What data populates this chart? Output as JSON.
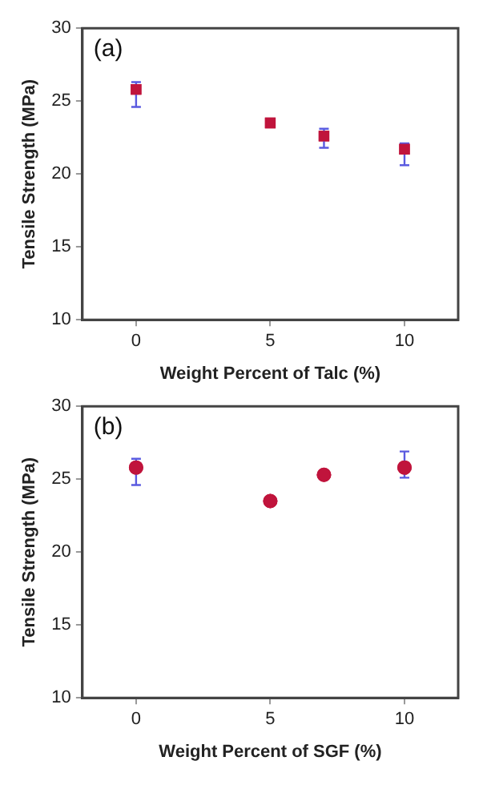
{
  "chart_data": [
    {
      "type": "scatter",
      "annotations": [
        "(a)"
      ],
      "xlabel": "Weight Percent of Talc (%)",
      "ylabel": "Tensile Strength (MPa)",
      "x": [
        0,
        5,
        7,
        10
      ],
      "series": [
        {
          "color": "#c0143c",
          "values": [
            25.8,
            23.5,
            22.6,
            21.7
          ],
          "errors": [
            [
              24.6,
              26.3
            ],
            null,
            [
              21.8,
              23.1
            ],
            [
              20.6,
              22.1
            ]
          ]
        }
      ],
      "xlim": [
        -2,
        12
      ],
      "xticks": [
        0,
        5,
        10
      ],
      "ylim": [
        10,
        30
      ],
      "yticks": [
        10,
        15,
        20,
        25,
        30
      ],
      "grid": false,
      "legend": false,
      "marker": "square"
    },
    {
      "type": "scatter",
      "annotations": [
        "(b)"
      ],
      "xlabel": "Weight Percent of SGF (%)",
      "ylabel": "Tensile Strength (MPa)",
      "x": [
        0,
        5,
        7,
        10
      ],
      "series": [
        {
          "color": "#c0143c",
          "values": [
            25.8,
            23.5,
            25.3,
            25.8
          ],
          "errors": [
            [
              24.6,
              26.4
            ],
            null,
            null,
            [
              25.1,
              26.9
            ]
          ]
        }
      ],
      "xlim": [
        -2,
        12
      ],
      "xticks": [
        0,
        5,
        10
      ],
      "ylim": [
        10,
        30
      ],
      "yticks": [
        10,
        15,
        20,
        25,
        30
      ],
      "grid": false,
      "legend": false,
      "marker": "circle"
    }
  ]
}
